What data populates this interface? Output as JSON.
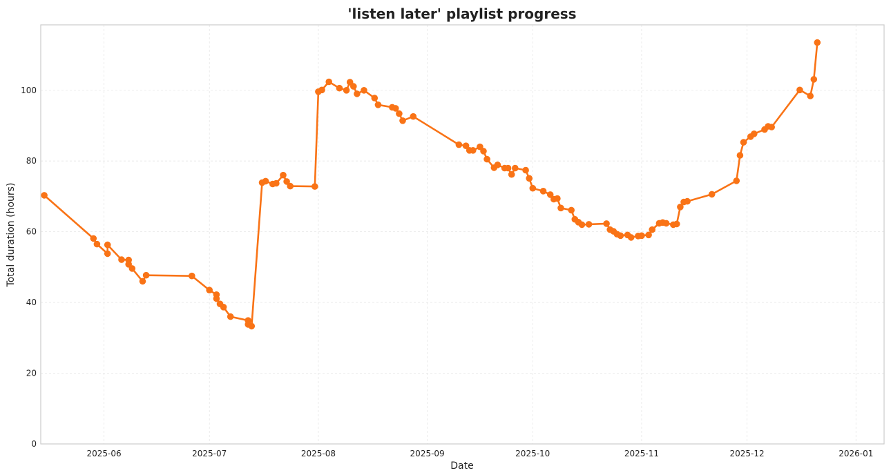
{
  "chart_data": {
    "type": "line",
    "title": "'listen later' playlist progress",
    "xlabel": "Date",
    "ylabel": "Total duration (hours)",
    "xlim": [
      "2025-05-14",
      "2026-01-09"
    ],
    "ylim": [
      0,
      118.5
    ],
    "x_ticks": [
      "2025-06-01",
      "2025-07-01",
      "2025-08-01",
      "2025-09-01",
      "2025-10-01",
      "2025-11-01",
      "2025-12-01",
      "2026-01-01"
    ],
    "x_tick_labels": [
      "2025-06",
      "2025-07",
      "2025-08",
      "2025-09",
      "2025-10",
      "2025-11",
      "2025-12",
      "2026-01"
    ],
    "y_ticks": [
      0,
      20,
      40,
      60,
      80,
      100
    ],
    "y_tick_labels": [
      "0",
      "20",
      "40",
      "60",
      "80",
      "100"
    ],
    "grid": true,
    "color": "#f97316",
    "points": [
      [
        "2025-05-15",
        70.3
      ],
      [
        "2025-05-29",
        58.1
      ],
      [
        "2025-05-30",
        56.5
      ],
      [
        "2025-06-02",
        53.8
      ],
      [
        "2025-06-02",
        56.3
      ],
      [
        "2025-06-06",
        52.1
      ],
      [
        "2025-06-08",
        52.0
      ],
      [
        "2025-06-08",
        50.8
      ],
      [
        "2025-06-09",
        49.6
      ],
      [
        "2025-06-12",
        46.0
      ],
      [
        "2025-06-13",
        47.7
      ],
      [
        "2025-06-26",
        47.5
      ],
      [
        "2025-07-01",
        43.5
      ],
      [
        "2025-07-03",
        42.2
      ],
      [
        "2025-07-03",
        41.1
      ],
      [
        "2025-07-04",
        39.6
      ],
      [
        "2025-07-05",
        38.7
      ],
      [
        "2025-07-07",
        36.0
      ],
      [
        "2025-07-12",
        34.9
      ],
      [
        "2025-07-12",
        33.8
      ],
      [
        "2025-07-13",
        33.3
      ],
      [
        "2025-07-16",
        73.9
      ],
      [
        "2025-07-17",
        74.3
      ],
      [
        "2025-07-19",
        73.5
      ],
      [
        "2025-07-20",
        73.7
      ],
      [
        "2025-07-22",
        76.0
      ],
      [
        "2025-07-23",
        74.2
      ],
      [
        "2025-07-24",
        72.9
      ],
      [
        "2025-07-31",
        72.8
      ],
      [
        "2025-08-01",
        99.6
      ],
      [
        "2025-08-02",
        100.1
      ],
      [
        "2025-08-04",
        102.4
      ],
      [
        "2025-08-07",
        100.6
      ],
      [
        "2025-08-09",
        100.0
      ],
      [
        "2025-08-10",
        102.3
      ],
      [
        "2025-08-11",
        101.1
      ],
      [
        "2025-08-12",
        99.0
      ],
      [
        "2025-08-14",
        100.0
      ],
      [
        "2025-08-17",
        97.8
      ],
      [
        "2025-08-18",
        95.9
      ],
      [
        "2025-08-22",
        95.2
      ],
      [
        "2025-08-23",
        94.9
      ],
      [
        "2025-08-24",
        93.4
      ],
      [
        "2025-08-25",
        91.4
      ],
      [
        "2025-08-28",
        92.6
      ],
      [
        "2025-09-10",
        84.6
      ],
      [
        "2025-09-12",
        84.3
      ],
      [
        "2025-09-13",
        83.0
      ],
      [
        "2025-09-14",
        83.0
      ],
      [
        "2025-09-16",
        84.0
      ],
      [
        "2025-09-17",
        82.8
      ],
      [
        "2025-09-18",
        80.5
      ],
      [
        "2025-09-20",
        78.1
      ],
      [
        "2025-09-21",
        78.9
      ],
      [
        "2025-09-23",
        78.0
      ],
      [
        "2025-09-24",
        78.0
      ],
      [
        "2025-09-25",
        76.2
      ],
      [
        "2025-09-26",
        78.0
      ],
      [
        "2025-09-29",
        77.4
      ],
      [
        "2025-09-30",
        75.1
      ],
      [
        "2025-10-01",
        72.3
      ],
      [
        "2025-10-04",
        71.5
      ],
      [
        "2025-10-06",
        70.5
      ],
      [
        "2025-10-07",
        69.2
      ],
      [
        "2025-10-08",
        69.4
      ],
      [
        "2025-10-09",
        66.7
      ],
      [
        "2025-10-12",
        66.1
      ],
      [
        "2025-10-13",
        63.5
      ],
      [
        "2025-10-14",
        62.7
      ],
      [
        "2025-10-15",
        62.0
      ],
      [
        "2025-10-17",
        62.1
      ],
      [
        "2025-10-22",
        62.3
      ],
      [
        "2025-10-23",
        60.6
      ],
      [
        "2025-10-24",
        60.1
      ],
      [
        "2025-10-25",
        59.3
      ],
      [
        "2025-10-26",
        58.9
      ],
      [
        "2025-10-28",
        59.1
      ],
      [
        "2025-10-29",
        58.4
      ],
      [
        "2025-10-31",
        58.8
      ],
      [
        "2025-11-01",
        58.9
      ],
      [
        "2025-11-03",
        59.1
      ],
      [
        "2025-11-04",
        60.6
      ],
      [
        "2025-11-06",
        62.4
      ],
      [
        "2025-11-07",
        62.6
      ],
      [
        "2025-11-08",
        62.4
      ],
      [
        "2025-11-10",
        62.0
      ],
      [
        "2025-11-11",
        62.2
      ],
      [
        "2025-11-12",
        67.0
      ],
      [
        "2025-11-13",
        68.4
      ],
      [
        "2025-11-14",
        68.6
      ],
      [
        "2025-11-21",
        70.6
      ],
      [
        "2025-11-28",
        74.4
      ],
      [
        "2025-11-29",
        81.6
      ],
      [
        "2025-11-30",
        85.3
      ],
      [
        "2025-12-02",
        86.9
      ],
      [
        "2025-12-03",
        87.7
      ],
      [
        "2025-12-06",
        88.9
      ],
      [
        "2025-12-07",
        89.8
      ],
      [
        "2025-12-08",
        89.6
      ],
      [
        "2025-12-16",
        100.1
      ],
      [
        "2025-12-19",
        98.4
      ],
      [
        "2025-12-20",
        103.1
      ],
      [
        "2025-12-21",
        113.5
      ]
    ]
  }
}
